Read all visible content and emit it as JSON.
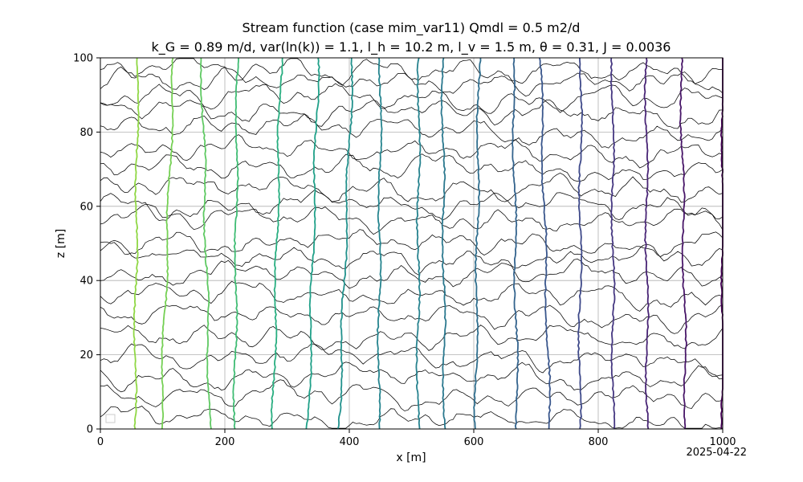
{
  "chart_data": {
    "type": "line",
    "title": "Stream function (case mim_var11) Qmdl = 0.5 m2/d",
    "subtitle": "k_G = 0.89 m/d, var(ln(k)) = 1.1, l_h = 10.2 m, l_v = 1.5 m, θ = 0.31, J = 0.0036",
    "xlabel": "x [m]",
    "ylabel": "z [m]",
    "xlim": [
      0,
      1000
    ],
    "ylim": [
      0,
      100
    ],
    "x_ticks": [
      "0",
      "200",
      "400",
      "600",
      "800",
      "1000"
    ],
    "y_ticks": [
      "0",
      "20",
      "40",
      "60",
      "80",
      "100"
    ],
    "grid": true,
    "date_stamp": "2025-04-22",
    "legend_placement": "lower-left",
    "stream_lines": [
      {
        "x_top": 60,
        "x_bottom": 55,
        "color": "#8fd744"
      },
      {
        "x_top": 118,
        "x_bottom": 97,
        "color": "#75d054"
      },
      {
        "x_top": 163,
        "x_bottom": 176,
        "color": "#5ec962"
      },
      {
        "x_top": 220,
        "x_bottom": 216,
        "color": "#3fbc73"
      },
      {
        "x_top": 290,
        "x_bottom": 277,
        "color": "#28ae80"
      },
      {
        "x_top": 350,
        "x_bottom": 334,
        "color": "#1fa088"
      },
      {
        "x_top": 405,
        "x_bottom": 383,
        "color": "#21918c"
      },
      {
        "x_top": 450,
        "x_bottom": 447,
        "color": "#25848e"
      },
      {
        "x_top": 512,
        "x_bottom": 510,
        "color": "#26828e"
      },
      {
        "x_top": 550,
        "x_bottom": 553,
        "color": "#2a788e"
      },
      {
        "x_top": 608,
        "x_bottom": 603,
        "color": "#2e6e8e"
      },
      {
        "x_top": 663,
        "x_bottom": 670,
        "color": "#33638d"
      },
      {
        "x_top": 707,
        "x_bottom": 722,
        "color": "#39568c"
      },
      {
        "x_top": 772,
        "x_bottom": 770,
        "color": "#3e4989"
      },
      {
        "x_top": 823,
        "x_bottom": 824,
        "color": "#453781"
      },
      {
        "x_top": 877,
        "x_bottom": 879,
        "color": "#482475"
      },
      {
        "x_top": 933,
        "x_bottom": 941,
        "color": "#481668"
      },
      {
        "x_top": 1000,
        "x_bottom": 1000,
        "color": "#440154"
      }
    ],
    "head_contours": {
      "color": "#000000",
      "z_left": [
        3,
        9,
        15,
        19,
        26,
        31,
        37,
        42,
        47,
        51,
        57,
        61,
        65,
        70,
        75,
        81,
        86,
        90,
        94,
        97
      ]
    }
  }
}
